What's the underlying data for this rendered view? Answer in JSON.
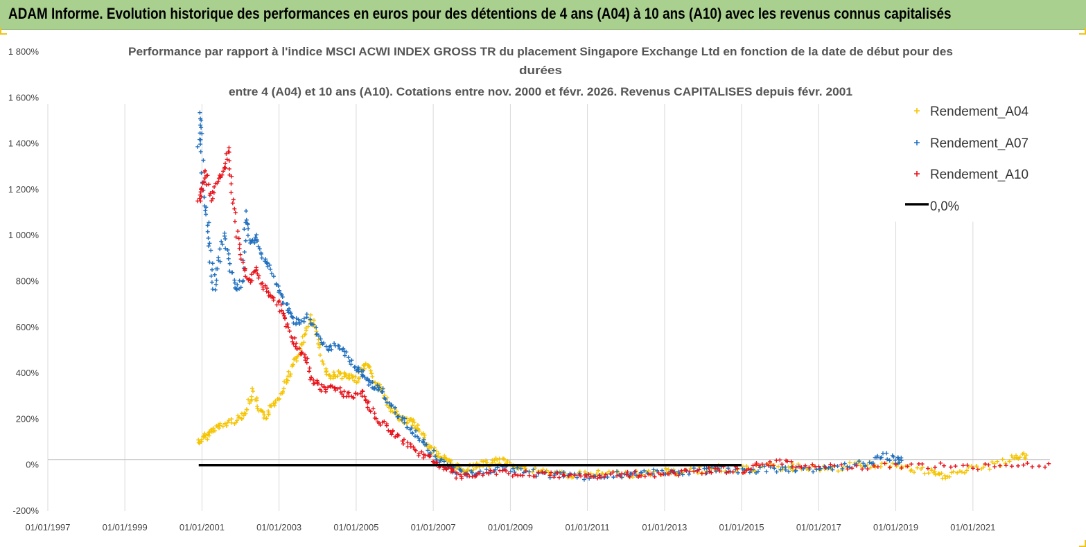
{
  "banner": {
    "title": "ADAM Informe. Evolution historique des performances en euros pour des détentions de 4 ans (A04) à 10 ans (A10) avec les revenus connus capitalisés",
    "background": "#a9d08e"
  },
  "chart_data": {
    "type": "scatter",
    "title_lines": [
      "Performance par rapport à l'indice MSCI ACWI INDEX GROSS TR  du placement Singapore Exchange Ltd en fonction de la date de début pour des",
      "durées",
      "entre 4 (A04) et 10 ans (A10). Cotations entre nov. 2000 et févr. 2026. Revenus CAPITALISES depuis févr. 2001"
    ],
    "xlabel": "",
    "ylabel": "",
    "x_range": [
      "1997-01-01",
      "2023-01-01"
    ],
    "y_range": [
      -200,
      1800
    ],
    "y_ticks": [
      -200,
      0,
      200,
      400,
      600,
      800,
      1000,
      1200,
      1400,
      1600,
      1800
    ],
    "y_tick_labels": [
      "-200%",
      "0%",
      "200%",
      "400%",
      "600%",
      "800%",
      "1 000%",
      "1 200%",
      "1 400%",
      "1 600%",
      "1 800%"
    ],
    "x_tick_labels": [
      "01/01/1997",
      "01/01/1999",
      "01/01/2001",
      "01/01/2003",
      "01/01/2005",
      "01/01/2007",
      "01/01/2009",
      "01/01/2011",
      "01/01/2013",
      "01/01/2015",
      "01/01/2017",
      "01/01/2019",
      "01/01/2021"
    ],
    "grid": "vertical",
    "legend_position": "top-right",
    "series": [
      {
        "name": "Rendement_A04",
        "color": "#f5c400",
        "marker": "plus",
        "points": [
          [
            "2000-12-01",
            100
          ],
          [
            "2001-01-15",
            115
          ],
          [
            "2001-03-01",
            135
          ],
          [
            "2001-05-01",
            160
          ],
          [
            "2001-07-01",
            170
          ],
          [
            "2001-10-01",
            190
          ],
          [
            "2002-01-01",
            205
          ],
          [
            "2002-03-01",
            240
          ],
          [
            "2002-05-01",
            320
          ],
          [
            "2002-07-01",
            230
          ],
          [
            "2002-09-01",
            210
          ],
          [
            "2002-11-01",
            260
          ],
          [
            "2003-01-01",
            300
          ],
          [
            "2003-03-01",
            360
          ],
          [
            "2003-05-01",
            420
          ],
          [
            "2003-07-01",
            480
          ],
          [
            "2003-09-01",
            560
          ],
          [
            "2003-11-01",
            640
          ],
          [
            "2004-01-01",
            560
          ],
          [
            "2004-03-01",
            430
          ],
          [
            "2004-05-01",
            380
          ],
          [
            "2004-07-01",
            400
          ],
          [
            "2004-09-01",
            390
          ],
          [
            "2004-11-01",
            380
          ],
          [
            "2005-01-01",
            370
          ],
          [
            "2005-03-01",
            420
          ],
          [
            "2005-05-01",
            440
          ],
          [
            "2005-07-01",
            360
          ],
          [
            "2005-09-01",
            330
          ],
          [
            "2005-11-01",
            260
          ],
          [
            "2006-01-01",
            230
          ],
          [
            "2006-03-01",
            200
          ],
          [
            "2006-05-01",
            195
          ],
          [
            "2006-07-01",
            180
          ],
          [
            "2006-09-01",
            150
          ],
          [
            "2006-11-01",
            90
          ],
          [
            "2007-01-01",
            60
          ],
          [
            "2007-03-01",
            40
          ],
          [
            "2007-05-01",
            20
          ],
          [
            "2007-07-01",
            5
          ],
          [
            "2007-09-01",
            -10
          ],
          [
            "2007-11-01",
            -20
          ],
          [
            "2008-01-01",
            -10
          ],
          [
            "2008-04-01",
            5
          ],
          [
            "2008-07-01",
            5
          ],
          [
            "2008-09-01",
            20
          ],
          [
            "2008-12-01",
            10
          ],
          [
            "2009-03-01",
            0
          ],
          [
            "2009-06-01",
            -20
          ],
          [
            "2009-12-01",
            -30
          ],
          [
            "2010-06-01",
            -40
          ],
          [
            "2011-01-01",
            -45
          ],
          [
            "2011-06-01",
            -35
          ],
          [
            "2012-01-01",
            -40
          ],
          [
            "2012-06-01",
            -35
          ],
          [
            "2013-01-01",
            -30
          ],
          [
            "2013-06-01",
            -30
          ],
          [
            "2014-01-01",
            -20
          ],
          [
            "2014-06-01",
            -15
          ],
          [
            "2015-01-01",
            -20
          ],
          [
            "2015-06-01",
            -10
          ],
          [
            "2016-01-01",
            -10
          ],
          [
            "2016-06-01",
            -10
          ],
          [
            "2017-01-01",
            -10
          ],
          [
            "2017-06-01",
            -20
          ],
          [
            "2018-01-01",
            5
          ],
          [
            "2018-06-01",
            0
          ],
          [
            "2019-01-01",
            0
          ],
          [
            "2019-06-01",
            -20
          ],
          [
            "2019-12-01",
            -30
          ],
          [
            "2020-03-01",
            -50
          ],
          [
            "2020-06-01",
            -40
          ],
          [
            "2020-12-01",
            -20
          ],
          [
            "2021-06-01",
            -5
          ],
          [
            "2021-12-01",
            20
          ],
          [
            "2022-03-01",
            40
          ],
          [
            "2022-06-01",
            35
          ]
        ]
      },
      {
        "name": "Rendement_A07",
        "color": "#1f6fbf",
        "marker": "plus",
        "points": [
          [
            "2000-12-01",
            1380
          ],
          [
            "2000-12-20",
            1540
          ],
          [
            "2001-01-10",
            1240
          ],
          [
            "2001-02-15",
            1100
          ],
          [
            "2001-03-15",
            950
          ],
          [
            "2001-04-20",
            760
          ],
          [
            "2001-06-01",
            880
          ],
          [
            "2001-08-01",
            1000
          ],
          [
            "2001-10-01",
            850
          ],
          [
            "2001-12-01",
            760
          ],
          [
            "2002-01-15",
            800
          ],
          [
            "2002-03-01",
            1100
          ],
          [
            "2002-04-01",
            960
          ],
          [
            "2002-06-01",
            1000
          ],
          [
            "2002-08-01",
            900
          ],
          [
            "2002-10-01",
            860
          ],
          [
            "2003-01-01",
            760
          ],
          [
            "2003-03-01",
            700
          ],
          [
            "2003-05-01",
            640
          ],
          [
            "2003-07-01",
            620
          ],
          [
            "2003-10-01",
            650
          ],
          [
            "2004-01-01",
            560
          ],
          [
            "2004-04-01",
            500
          ],
          [
            "2004-07-01",
            520
          ],
          [
            "2004-10-01",
            480
          ],
          [
            "2005-01-01",
            420
          ],
          [
            "2005-03-01",
            400
          ],
          [
            "2005-05-01",
            360
          ],
          [
            "2005-07-01",
            340
          ],
          [
            "2005-09-01",
            320
          ],
          [
            "2005-12-01",
            250
          ],
          [
            "2006-03-01",
            200
          ],
          [
            "2006-06-01",
            160
          ],
          [
            "2006-09-01",
            120
          ],
          [
            "2006-12-01",
            60
          ],
          [
            "2007-03-01",
            20
          ],
          [
            "2007-06-01",
            -10
          ],
          [
            "2007-09-01",
            -30
          ],
          [
            "2008-01-01",
            -40
          ],
          [
            "2008-06-01",
            -20
          ],
          [
            "2008-12-01",
            -20
          ],
          [
            "2009-06-01",
            -30
          ],
          [
            "2010-01-01",
            -40
          ],
          [
            "2010-06-01",
            -45
          ],
          [
            "2011-01-01",
            -50
          ],
          [
            "2011-06-01",
            -45
          ],
          [
            "2012-01-01",
            -40
          ],
          [
            "2012-06-01",
            -35
          ],
          [
            "2013-01-01",
            -35
          ],
          [
            "2013-06-01",
            -30
          ],
          [
            "2014-01-01",
            -25
          ],
          [
            "2014-06-01",
            -20
          ],
          [
            "2015-01-01",
            -30
          ],
          [
            "2015-06-01",
            -20
          ],
          [
            "2016-01-01",
            -20
          ],
          [
            "2016-06-01",
            -15
          ],
          [
            "2017-01-01",
            -15
          ],
          [
            "2017-06-01",
            -10
          ],
          [
            "2018-01-01",
            0
          ],
          [
            "2018-06-01",
            20
          ],
          [
            "2018-10-01",
            40
          ],
          [
            "2019-01-01",
            20
          ],
          [
            "2019-03-01",
            20
          ]
        ]
      },
      {
        "name": "Rendement_A10",
        "color": "#e8121a",
        "marker": "plus",
        "points": [
          [
            "2000-12-01",
            1150
          ],
          [
            "2001-01-01",
            1200
          ],
          [
            "2001-02-01",
            1280
          ],
          [
            "2001-04-01",
            1160
          ],
          [
            "2001-06-01",
            1250
          ],
          [
            "2001-08-01",
            1280
          ],
          [
            "2001-09-01",
            1380
          ],
          [
            "2001-10-15",
            1200
          ],
          [
            "2001-12-01",
            1000
          ],
          [
            "2002-02-01",
            860
          ],
          [
            "2002-04-01",
            800
          ],
          [
            "2002-06-01",
            860
          ],
          [
            "2002-08-01",
            780
          ],
          [
            "2002-10-01",
            740
          ],
          [
            "2003-01-01",
            700
          ],
          [
            "2003-03-01",
            640
          ],
          [
            "2003-05-01",
            560
          ],
          [
            "2003-07-01",
            500
          ],
          [
            "2003-09-01",
            480
          ],
          [
            "2003-11-01",
            380
          ],
          [
            "2004-01-01",
            350
          ],
          [
            "2004-03-01",
            330
          ],
          [
            "2004-06-01",
            350
          ],
          [
            "2004-09-01",
            310
          ],
          [
            "2004-12-01",
            300
          ],
          [
            "2005-03-01",
            320
          ],
          [
            "2005-05-01",
            260
          ],
          [
            "2005-08-01",
            200
          ],
          [
            "2005-11-01",
            160
          ],
          [
            "2006-02-01",
            120
          ],
          [
            "2006-06-01",
            80
          ],
          [
            "2006-09-01",
            50
          ],
          [
            "2007-01-01",
            20
          ],
          [
            "2007-03-01",
            0
          ],
          [
            "2007-06-01",
            -20
          ],
          [
            "2007-09-01",
            -50
          ],
          [
            "2008-01-01",
            -40
          ],
          [
            "2008-06-01",
            -30
          ],
          [
            "2008-12-01",
            -30
          ],
          [
            "2009-06-01",
            -40
          ],
          [
            "2010-01-01",
            -45
          ],
          [
            "2010-06-01",
            -50
          ],
          [
            "2011-01-01",
            -50
          ],
          [
            "2011-06-01",
            -45
          ],
          [
            "2012-01-01",
            -40
          ],
          [
            "2012-06-01",
            -40
          ],
          [
            "2013-01-01",
            -35
          ],
          [
            "2013-06-01",
            -30
          ],
          [
            "2014-01-01",
            -25
          ],
          [
            "2014-06-01",
            -20
          ],
          [
            "2015-01-01",
            -20
          ],
          [
            "2015-06-01",
            5
          ],
          [
            "2015-12-01",
            10
          ],
          [
            "2016-06-01",
            0
          ],
          [
            "2017-01-01",
            -5
          ],
          [
            "2018-01-01",
            -5
          ],
          [
            "2019-01-01",
            -5
          ],
          [
            "2020-01-01",
            -5
          ],
          [
            "2021-01-01",
            -5
          ],
          [
            "2022-01-01",
            -5
          ],
          [
            "2023-01-01",
            -5
          ]
        ]
      },
      {
        "name": "0,0%",
        "color": "#000000",
        "marker": "line",
        "points": [
          [
            "2000-12-01",
            0
          ],
          [
            "2015-01-01",
            0
          ]
        ]
      }
    ]
  }
}
